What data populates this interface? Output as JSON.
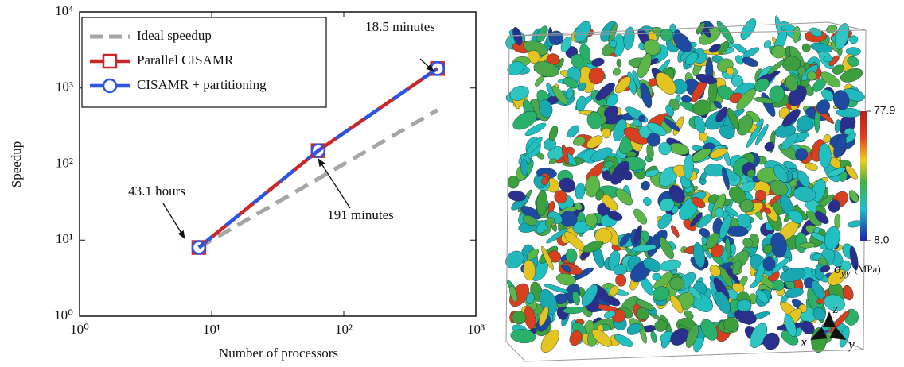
{
  "chart_data": {
    "type": "line",
    "x_label": "Number of processors",
    "y_label": "Speedup",
    "x": [
      8,
      64,
      512
    ],
    "series": [
      {
        "name": "Ideal speedup",
        "color": "#a6a6a6",
        "values": [
          8,
          64,
          512
        ]
      },
      {
        "name": "Parallel CISAMR",
        "color": "#c8282a",
        "values": [
          8,
          150,
          1800
        ]
      },
      {
        "name": "CISAMR + partitioning",
        "color": "#2a55e6",
        "values": [
          8,
          150,
          1800
        ]
      }
    ],
    "xscale": "log",
    "yscale": "log",
    "xlim": [
      1,
      1000
    ],
    "ylim": [
      1,
      10000
    ],
    "xticks": [
      {
        "value": 1,
        "label": "10⁰"
      },
      {
        "value": 10,
        "label": "10¹"
      },
      {
        "value": 100,
        "label": "10²"
      },
      {
        "value": 1000,
        "label": "10³"
      }
    ],
    "yticks": [
      {
        "value": 1,
        "label": "10⁰"
      },
      {
        "value": 10,
        "label": "10¹"
      },
      {
        "value": 100,
        "label": "10²"
      },
      {
        "value": 1000,
        "label": "10³"
      },
      {
        "value": 10000,
        "label": "10⁴"
      }
    ],
    "legend": "upper left",
    "annotations": [
      "43.1 hours",
      "191 minutes",
      "18.5 minutes"
    ]
  },
  "visualization": {
    "clim": [
      8,
      77.9
    ],
    "cticks": [
      {
        "value": 77.9,
        "label": "77.9"
      },
      {
        "value": 8,
        "label": "8.0"
      }
    ],
    "colorbar_label": {
      "symbol": "σ",
      "subscript": "yy",
      "unit": "(MPa)"
    },
    "axes": [
      "x",
      "y",
      "z"
    ]
  }
}
